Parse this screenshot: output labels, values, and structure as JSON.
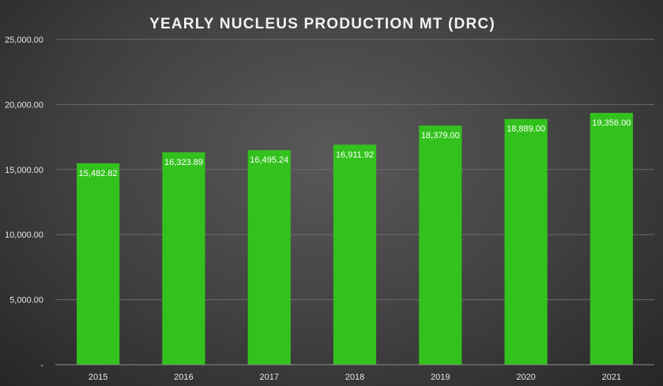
{
  "chart_data": {
    "type": "bar",
    "title": "YEARLY NUCLEUS PRODUCTION MT (DRC)",
    "xlabel": "",
    "ylabel": "",
    "categories": [
      "2015",
      "2016",
      "2017",
      "2018",
      "2019",
      "2020",
      "2021"
    ],
    "values": [
      15482.82,
      16323.89,
      16495.24,
      16911.92,
      18379.0,
      18889.0,
      19356.0
    ],
    "data_labels": [
      "15,482.82",
      "16,323.89",
      "16,495.24",
      "16,911.92",
      "18,379.00",
      "18,889.00",
      "19,356.00"
    ],
    "ylim": [
      0,
      25000
    ],
    "yticks": [
      0,
      5000,
      10000,
      15000,
      20000,
      25000
    ],
    "ytick_labels": [
      "-",
      "5,000.00",
      "10,000.00",
      "15,000.00",
      "20,000.00",
      "25,000.00"
    ],
    "grid": true,
    "legend": "none",
    "colors": {
      "bar": "#33c21d",
      "background": "#404040"
    }
  }
}
